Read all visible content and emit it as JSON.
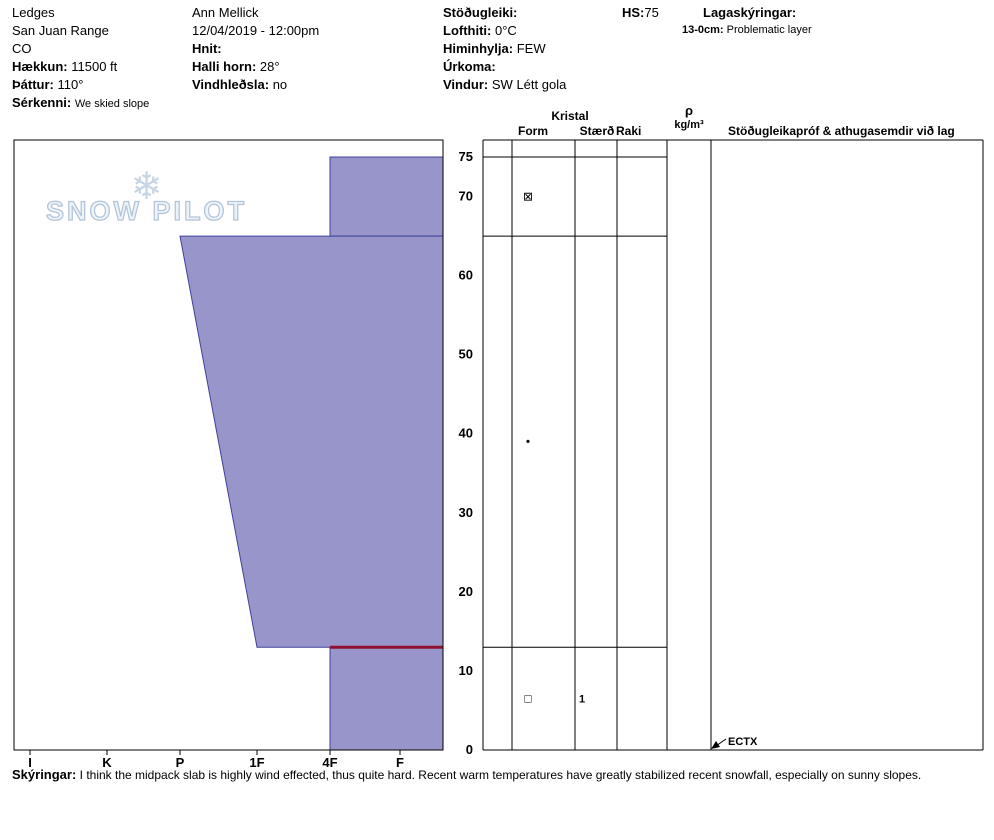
{
  "header": {
    "site": {
      "name": "Ledges",
      "range": "San Juan Range",
      "state": "CO",
      "elevation_label": "Hækkun:",
      "elevation_value": "11500 ft",
      "aspect_label": "Þáttur:",
      "aspect_value": "110°",
      "notes_label": "Sérkenni:",
      "notes_value": "We skied slope"
    },
    "observer": {
      "name": "Ann Mellick",
      "datetime": "12/04/2019 - 12:00pm",
      "coords_label": "Hnit:",
      "coords_value": "",
      "slope_label": "Halli horn:",
      "slope_value": "28°",
      "windloading_label": "Vindhleðsla:",
      "windloading_value": "no"
    },
    "weather": {
      "stability_label": "Stöðugleiki:",
      "stability_value": "",
      "airtemp_label": "Lofthiti:",
      "airtemp_value": "0°C",
      "sky_label": "Himinhylja:",
      "sky_value": "FEW",
      "precip_label": "Úrkoma:",
      "precip_value": "",
      "wind_label": "Vindur:",
      "wind_value": "SW Létt gola"
    },
    "hs": {
      "label": "HS:",
      "value": "75"
    },
    "layer_notes": {
      "title": "Lagaskýringar:",
      "entry_label": "13-0cm:",
      "entry_value": "Problematic layer"
    }
  },
  "logo": {
    "text": "SNOW PILOT",
    "icon": "snowflake-icon"
  },
  "table": {
    "group_header": "Kristal",
    "columns": [
      "Form",
      "Stærð",
      "Raki"
    ],
    "density_header_symbol": "ρ",
    "density_header_unit": "kg/m³",
    "comments_header": "Stöðugleikapróf & athugasemdir við lag"
  },
  "chart_data": {
    "type": "area",
    "subtype": "snow-hardness-profile",
    "hardness_ticks": [
      "I",
      "K",
      "P",
      "1F",
      "4F",
      "F"
    ],
    "depth_ticks": [
      75,
      70,
      60,
      50,
      40,
      30,
      20,
      10,
      0
    ],
    "depth_unit": "cm",
    "hs_cm": 75,
    "layers": [
      {
        "top_cm": 75,
        "bottom_cm": 65,
        "hardness_top": "4F",
        "hardness_bottom": "4F",
        "grain_form_symbol": "⊠",
        "grain_symbol_depth_cm": 70
      },
      {
        "top_cm": 65,
        "bottom_cm": 13,
        "hardness_top": "P",
        "hardness_bottom": "1F",
        "grain_form_symbol": "•",
        "grain_symbol_depth_cm": 39
      },
      {
        "top_cm": 13,
        "bottom_cm": 0,
        "hardness_top": "4F",
        "hardness_bottom": "4F",
        "flagged": true,
        "grain_form_symbol": "□",
        "grain_size_mm": "1",
        "grain_symbol_depth_cm": 6.5
      }
    ],
    "tests": [
      {
        "label": "ECTX",
        "depth_cm": 0
      }
    ],
    "colors": {
      "layer_fill": "#9795c9",
      "layer_stroke": "#41419b",
      "flag_line": "#8f1030"
    }
  },
  "footer": {
    "label": "Skýringar:",
    "text": "I think the midpack slab is highly wind effected, thus quite hard. Recent warm temperatures have greatly stabilized recent snowfall, especially on sunny slopes."
  }
}
